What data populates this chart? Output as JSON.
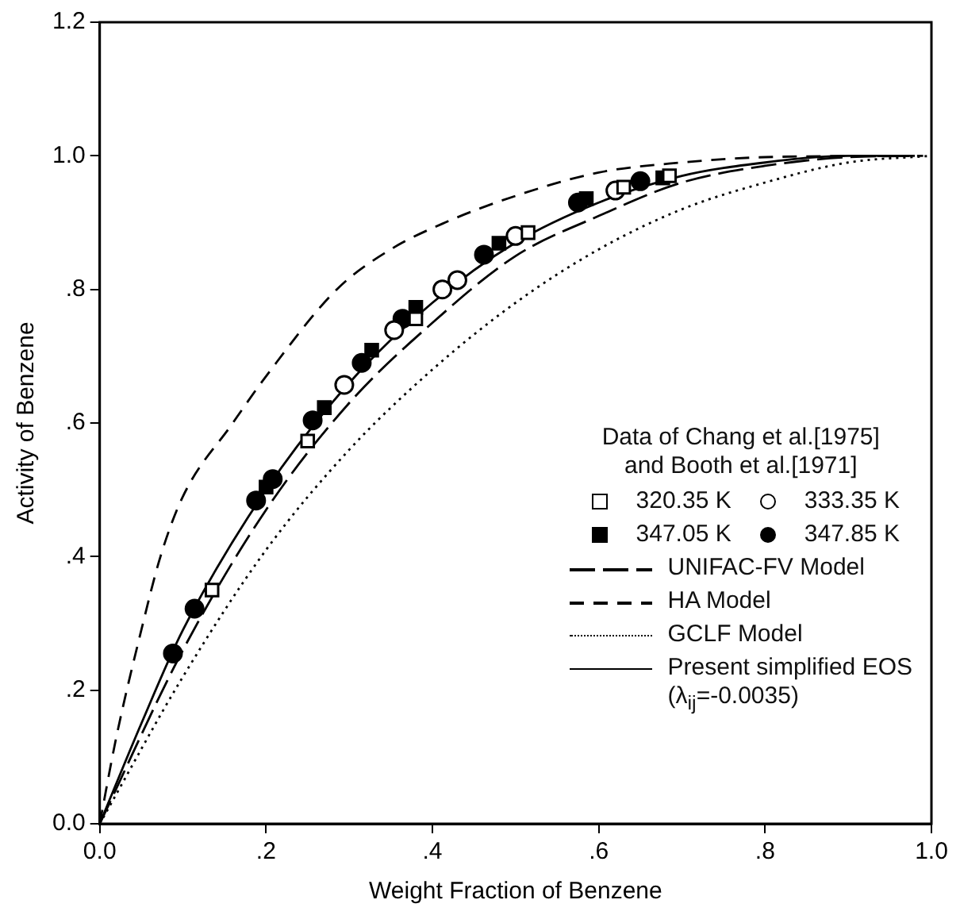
{
  "chart_data": {
    "type": "scatter",
    "xlabel": "Weight Fraction of Benzene",
    "ylabel": "Activity of Benzene",
    "legend_title": "Data of Chang et al.[1975]\nand Booth et al.[1971]",
    "legend": "bottom right",
    "grid": false,
    "xlim": [
      0,
      1
    ],
    "ylim": [
      0,
      1.2
    ],
    "xticks": [
      {
        "value": 0,
        "label": "0.0"
      },
      {
        "value": 0.2,
        "label": ".2"
      },
      {
        "value": 0.4,
        "label": ".4"
      },
      {
        "value": 0.6,
        "label": ".6"
      },
      {
        "value": 0.8,
        "label": ".8"
      },
      {
        "value": 1,
        "label": "1.0"
      }
    ],
    "yticks": [
      {
        "value": 0,
        "label": "0.0"
      },
      {
        "value": 0.2,
        "label": ".2"
      },
      {
        "value": 0.4,
        "label": ".4"
      },
      {
        "value": 0.6,
        "label": ".6"
      },
      {
        "value": 0.8,
        "label": ".8"
      },
      {
        "value": 1,
        "label": "1.0"
      },
      {
        "value": 1.2,
        "label": "1.2"
      }
    ],
    "series": [
      {
        "name": "320.35 K",
        "marker": "square",
        "color": "#ffffff",
        "x": [
          0.135,
          0.25,
          0.38,
          0.515,
          0.63,
          0.685
        ],
        "values": [
          0.35,
          0.573,
          0.756,
          0.885,
          0.953,
          0.97
        ]
      },
      {
        "name": "333.35 K",
        "marker": "circle",
        "color": "#ffffff",
        "x": [
          0.294,
          0.354,
          0.412,
          0.43,
          0.5,
          0.62
        ],
        "values": [
          0.657,
          0.739,
          0.8,
          0.814,
          0.88,
          0.948
        ]
      },
      {
        "name": "347.05 K",
        "marker": "square",
        "color": "#000000",
        "x": [
          0.2,
          0.27,
          0.327,
          0.38,
          0.48,
          0.585,
          0.677
        ],
        "values": [
          0.504,
          0.623,
          0.709,
          0.773,
          0.869,
          0.936,
          0.967
        ]
      },
      {
        "name": "347.85 K",
        "marker": "circle",
        "color": "#000000",
        "x": [
          0.088,
          0.114,
          0.188,
          0.208,
          0.256,
          0.315,
          0.364,
          0.462,
          0.575,
          0.65
        ],
        "values": [
          0.255,
          0.322,
          0.484,
          0.516,
          0.604,
          0.69,
          0.756,
          0.852,
          0.93,
          0.962
        ]
      },
      {
        "name": "UNIFAC-FV Model",
        "type": "line",
        "line_style": "dashed",
        "marker": "none",
        "color": "#000000",
        "x": [
          0,
          0.1,
          0.2,
          0.3,
          0.4,
          0.5,
          0.6,
          0.7,
          0.8,
          0.9,
          0.99
        ],
        "values": [
          0,
          0.26,
          0.47,
          0.63,
          0.75,
          0.85,
          0.91,
          0.96,
          0.985,
          0.998,
          1
        ]
      },
      {
        "name": "HA Model",
        "type": "line",
        "line_style": "dashed",
        "marker": "none",
        "color": "#000000",
        "x": [
          0,
          0.02,
          0.05,
          0.073,
          0.1,
          0.16,
          0.2,
          0.285,
          0.35,
          0.415,
          0.5,
          0.6,
          0.7,
          0.8,
          0.97
        ],
        "values": [
          0,
          0.13,
          0.29,
          0.4,
          0.49,
          0.6,
          0.67,
          0.8,
          0.86,
          0.9,
          0.94,
          0.975,
          0.99,
          0.998,
          1
        ]
      },
      {
        "name": "GCLF Model",
        "type": "line",
        "line_style": "dotted",
        "marker": "none",
        "color": "#000000",
        "x": [
          0,
          0.1,
          0.2,
          0.3,
          0.4,
          0.5,
          0.6,
          0.7,
          0.8,
          0.9,
          1
        ],
        "values": [
          0,
          0.22,
          0.41,
          0.56,
          0.68,
          0.78,
          0.86,
          0.92,
          0.96,
          0.99,
          1
        ]
      },
      {
        "name": "Present simplified EOS\n(λ$_{ij}$=-0.0035)",
        "type": "line",
        "line_style": "solid",
        "marker": "none",
        "color": "#000000",
        "x": [
          0,
          0.05,
          0.1,
          0.2,
          0.3,
          0.4,
          0.5,
          0.6,
          0.7,
          0.8,
          0.9,
          0.98
        ],
        "values": [
          0,
          0.15,
          0.29,
          0.5,
          0.66,
          0.78,
          0.87,
          0.93,
          0.97,
          0.99,
          1,
          1
        ]
      }
    ]
  }
}
